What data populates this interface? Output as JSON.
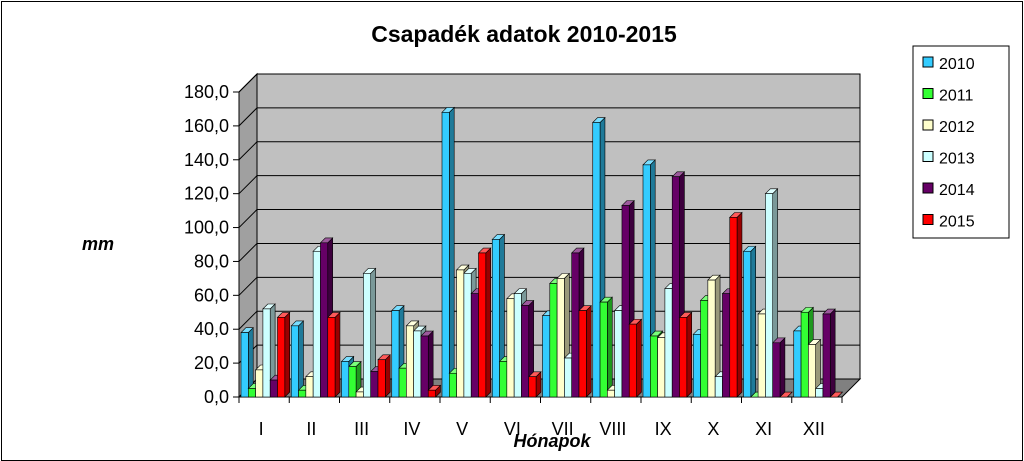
{
  "chart_data": {
    "type": "bar",
    "title": "Csapadék adatok 2010-2015",
    "xlabel": "Hónapok",
    "ylabel": "mm",
    "ylim": [
      0,
      180
    ],
    "yticks": [
      "0,0",
      "20,0",
      "40,0",
      "60,0",
      "80,0",
      "100,0",
      "120,0",
      "140,0",
      "160,0",
      "180,0"
    ],
    "grid": true,
    "legend_position": "right",
    "categories": [
      "I",
      "II",
      "III",
      "IV",
      "V",
      "VI",
      "VII",
      "VIII",
      "IX",
      "X",
      "XI",
      "XII"
    ],
    "series": [
      {
        "name": "2010",
        "color": "#33CCFF",
        "values": [
          38,
          42,
          21,
          51,
          168,
          93,
          48,
          162,
          137,
          37,
          86,
          39
        ]
      },
      {
        "name": "2011",
        "color": "#33FF33",
        "values": [
          5,
          4,
          18,
          17,
          14,
          21,
          67,
          56,
          36,
          57,
          0,
          50
        ]
      },
      {
        "name": "2012",
        "color": "#FFFFCC",
        "values": [
          16,
          12,
          3,
          42,
          75,
          58,
          70,
          4,
          35,
          69,
          49,
          31
        ]
      },
      {
        "name": "2013",
        "color": "#CCFFFF",
        "values": [
          52,
          86,
          73,
          39,
          73,
          61,
          23,
          51,
          64,
          12,
          120,
          5
        ]
      },
      {
        "name": "2014",
        "color": "#660066",
        "values": [
          10,
          91,
          15,
          36,
          61,
          54,
          85,
          113,
          130,
          61,
          32,
          49
        ]
      },
      {
        "name": "2015",
        "color": "#FF0000",
        "values": [
          47,
          47,
          22,
          4,
          85,
          12,
          51,
          43,
          47,
          106,
          0,
          0
        ]
      }
    ]
  }
}
